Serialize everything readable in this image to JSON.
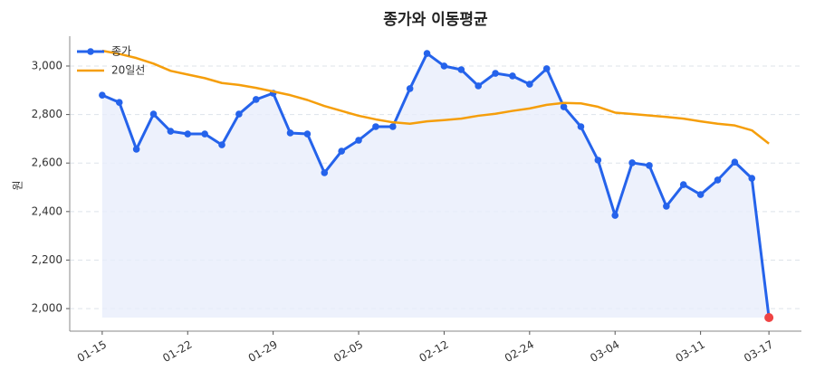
{
  "chart_data": {
    "type": "line",
    "title": "종가와 이동평균",
    "ylabel": "원",
    "categories": [
      "01-15",
      null,
      null,
      null,
      null,
      "01-22",
      null,
      null,
      null,
      null,
      "01-29",
      null,
      null,
      null,
      null,
      "02-05",
      null,
      null,
      null,
      null,
      "02-12",
      null,
      null,
      null,
      null,
      "02-24",
      null,
      null,
      null,
      null,
      "03-04",
      null,
      null,
      null,
      null,
      "03-11",
      null,
      null,
      null,
      "03-17"
    ],
    "series": [
      {
        "name": "종가",
        "color": "#2563eb",
        "fill": "#e8eefb",
        "last_point_color": "#ef4444",
        "values": [
          2880,
          2850,
          2657,
          2802,
          2731,
          2720,
          2720,
          2675,
          2802,
          2862,
          2888,
          2724,
          2720,
          2560,
          2649,
          2694,
          2750,
          2750,
          2907,
          3052,
          3000,
          2985,
          2918,
          2970,
          2959,
          2925,
          2989,
          2832,
          2750,
          2612,
          2384,
          2601,
          2590,
          2422,
          2511,
          2470,
          2530,
          2604,
          2537,
          1963
        ]
      },
      {
        "name": "20일선",
        "color": "#f59e0b",
        "values": [
          3063,
          3050,
          3033,
          3010,
          2980,
          2965,
          2950,
          2930,
          2922,
          2910,
          2895,
          2880,
          2860,
          2835,
          2815,
          2795,
          2780,
          2768,
          2762,
          2772,
          2777,
          2783,
          2795,
          2803,
          2815,
          2825,
          2840,
          2848,
          2846,
          2832,
          2808,
          2802,
          2796,
          2790,
          2783,
          2772,
          2762,
          2755,
          2735,
          2680
        ]
      }
    ],
    "ylim": [
      1907,
      3123
    ],
    "yticks": [
      {
        "value": 2000,
        "label": "2,000"
      },
      {
        "value": 2200,
        "label": "2,200"
      },
      {
        "value": 2400,
        "label": "2,400"
      },
      {
        "value": 2600,
        "label": "2,600"
      },
      {
        "value": 2800,
        "label": "2,800"
      },
      {
        "value": 3000,
        "label": "3,000"
      }
    ],
    "grid": true,
    "legend": "upper left"
  }
}
